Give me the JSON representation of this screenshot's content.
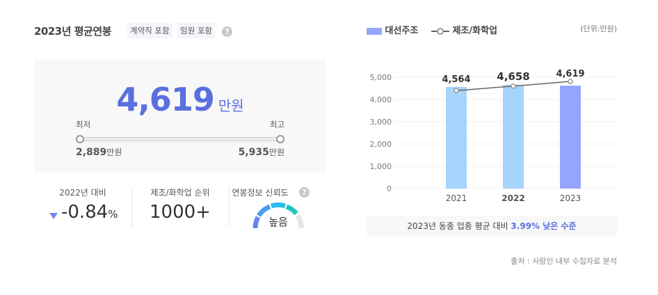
{
  "header": {
    "title": "2023년 평균연봉",
    "tags": [
      "계약직 포함",
      "임원 포함"
    ],
    "help": "?"
  },
  "summary": {
    "value": "4,619",
    "unit": "만원",
    "min_label": "최저",
    "max_label": "최고",
    "min_value": "2,889",
    "max_value": "5,935",
    "range_unit": "만원"
  },
  "stats": [
    {
      "label": "2022년 대비",
      "value": "-0.84",
      "suffix": "%",
      "direction": "down"
    },
    {
      "label": "제조/화학업 순위",
      "value": "1000+"
    },
    {
      "label": "연봉정보 신뢰도",
      "value": "높음"
    }
  ],
  "colors": {
    "accent": "#5a6fe0",
    "bar_past": "#a5d4fc",
    "bar_current": "#94a5fd",
    "line": "#666666"
  },
  "chart_data": {
    "type": "bar",
    "categories": [
      "2021",
      "2022",
      "2023"
    ],
    "series": [
      {
        "name": "대선주조",
        "type": "bar",
        "values": [
          4564,
          4658,
          4619
        ]
      },
      {
        "name": "제조/화학업",
        "type": "line",
        "values": [
          4400,
          4600,
          4811
        ]
      }
    ],
    "data_labels": [
      "4,564",
      "4,658",
      "4,619"
    ],
    "yticks": [
      "0",
      "1,000",
      "2,000",
      "3,000",
      "4,000",
      "5,000"
    ],
    "ylim": [
      0,
      5000
    ],
    "unit": "(단위:만원)",
    "grid": true,
    "legend": "top-left"
  },
  "note": {
    "text": "2023년 동종 업종 평균 대비 ",
    "highlight": "3.99% 낮은 수준"
  },
  "source": "출처 : 사람인 내부 수집자료 분석"
}
